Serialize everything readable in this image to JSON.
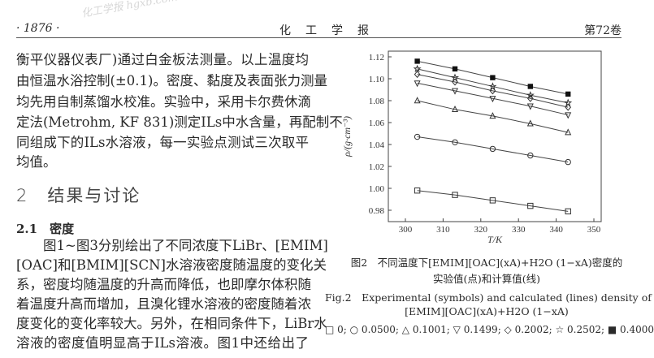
{
  "watermark": "化工学报 hgxb.com.cn",
  "header": {
    "page_number": "· 1876 ·",
    "journal": "化　工　学　报",
    "volume": "第72卷"
  },
  "body": {
    "para1": [
      "衡平仪器仪表厂)通过白金板法测量。以上温度均",
      "由恒温水浴控制(±0.1)。密度、黏度及表面张力测量",
      "均先用自制蒸馏水校准。实验中，采用卡尔费休滴",
      "定法(Metrohm, KF 831)测定ILs中水含量，再配制不",
      "同组成下的ILs水溶液，每一实验点测试三次取平",
      "均值。"
    ],
    "section_heading": "2　结果与讨论",
    "subsection_heading": "2.1　密度",
    "para2": [
      "　　图1~图3分别绘出了不同浓度下LiBr、[EMIM]",
      "[OAC]和[BMIM][SCN]水溶液密度随温度的变化关",
      "系，密度均随温度的升高而降低，也即摩尔体积随",
      "着温度升高而增加，且溴化锂水溶液的密度随着浓",
      "度变化的变化率较大。另外，在相同条件下，LiBr水",
      "溶液的密度值明显高于ILs溶液。图1中还给出了"
    ]
  },
  "caption": {
    "cn_line1": "图2　不同温度下[EMIM][OAC](xA)+H2O (1−xA)密度的",
    "cn_line2": "实验值(点)和计算值(线)",
    "en_line1": "Fig.2　Experimental (symbols) and calculated (lines) density of",
    "en_line2": "[EMIM][OAC](xA)+H2O (1−xA)",
    "legend": "□ 0; ○ 0.0500; △ 0.1001; ▽ 0.1499; ◇ 0.2002; ☆ 0.2502; ■ 0.4000"
  },
  "chart_data": {
    "type": "line",
    "xlabel": "T/K",
    "ylabel": "ρ/(g·cm⁻³)",
    "xlim": [
      295,
      350
    ],
    "ylim": [
      0.97,
      1.12
    ],
    "x_ticks": [
      300,
      310,
      320,
      330,
      340,
      350
    ],
    "y_ticks": [
      0.98,
      1.0,
      1.02,
      1.04,
      1.06,
      1.08,
      1.1,
      1.12
    ],
    "x": [
      303.15,
      313.15,
      323.15,
      333.15,
      343.15
    ],
    "grid": false,
    "series": [
      {
        "name": "0",
        "marker": "square-open",
        "values": [
          0.998,
          0.994,
          0.989,
          0.984,
          0.979
        ]
      },
      {
        "name": "0.0500",
        "marker": "circle-open",
        "values": [
          1.047,
          1.042,
          1.036,
          1.03,
          1.024
        ]
      },
      {
        "name": "0.1001",
        "marker": "triangle-up-open",
        "values": [
          1.08,
          1.072,
          1.066,
          1.059,
          1.051
        ]
      },
      {
        "name": "0.1499",
        "marker": "triangle-down-open",
        "values": [
          1.096,
          1.089,
          1.082,
          1.075,
          1.067
        ]
      },
      {
        "name": "0.2002",
        "marker": "diamond-open",
        "values": [
          1.104,
          1.097,
          1.089,
          1.082,
          1.074
        ]
      },
      {
        "name": "0.2502",
        "marker": "star-open",
        "values": [
          1.109,
          1.101,
          1.093,
          1.085,
          1.078
        ]
      },
      {
        "name": "0.4000",
        "marker": "square-filled",
        "values": [
          1.116,
          1.109,
          1.101,
          1.093,
          1.086
        ]
      }
    ]
  }
}
